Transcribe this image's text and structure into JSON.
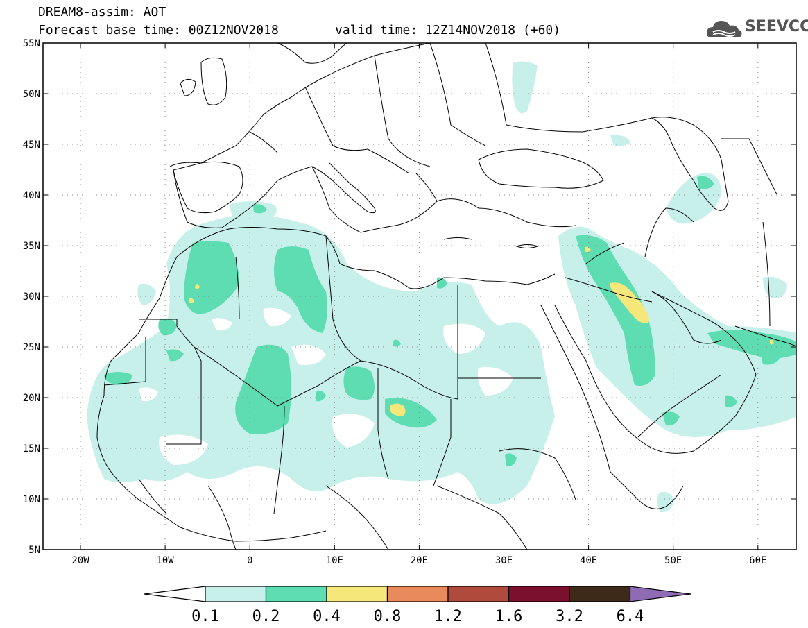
{
  "header": {
    "title": "DREAM8-assim: AOT",
    "base_time": "Forecast base time: 00Z12NOV2018",
    "valid_time": "valid time: 12Z14NOV2018 (+60)"
  },
  "logo": {
    "text": "SEEVCCC",
    "icon": "cloud-icon"
  },
  "map": {
    "lat_labels": [
      "55N",
      "50N",
      "45N",
      "40N",
      "35N",
      "30N",
      "25N",
      "20N",
      "15N",
      "10N",
      "5N"
    ],
    "lon_labels": [
      "20W",
      "10W",
      "0",
      "10E",
      "20E",
      "30E",
      "40E",
      "50E",
      "60E"
    ]
  },
  "colorbar": {
    "labels": [
      "0.1",
      "0.2",
      "0.4",
      "0.8",
      "1.2",
      "1.6",
      "3.2",
      "6.4"
    ],
    "colors": [
      "#ffffff",
      "#c8f0ea",
      "#5edcb2",
      "#f6e77a",
      "#e98a5c",
      "#b04a3c",
      "#7a0f2e",
      "#3e2a18",
      "#8f6ab5"
    ]
  },
  "colors": {
    "light": "#c8f0ea",
    "medium": "#5edcb2",
    "yellow": "#f6e77a"
  }
}
